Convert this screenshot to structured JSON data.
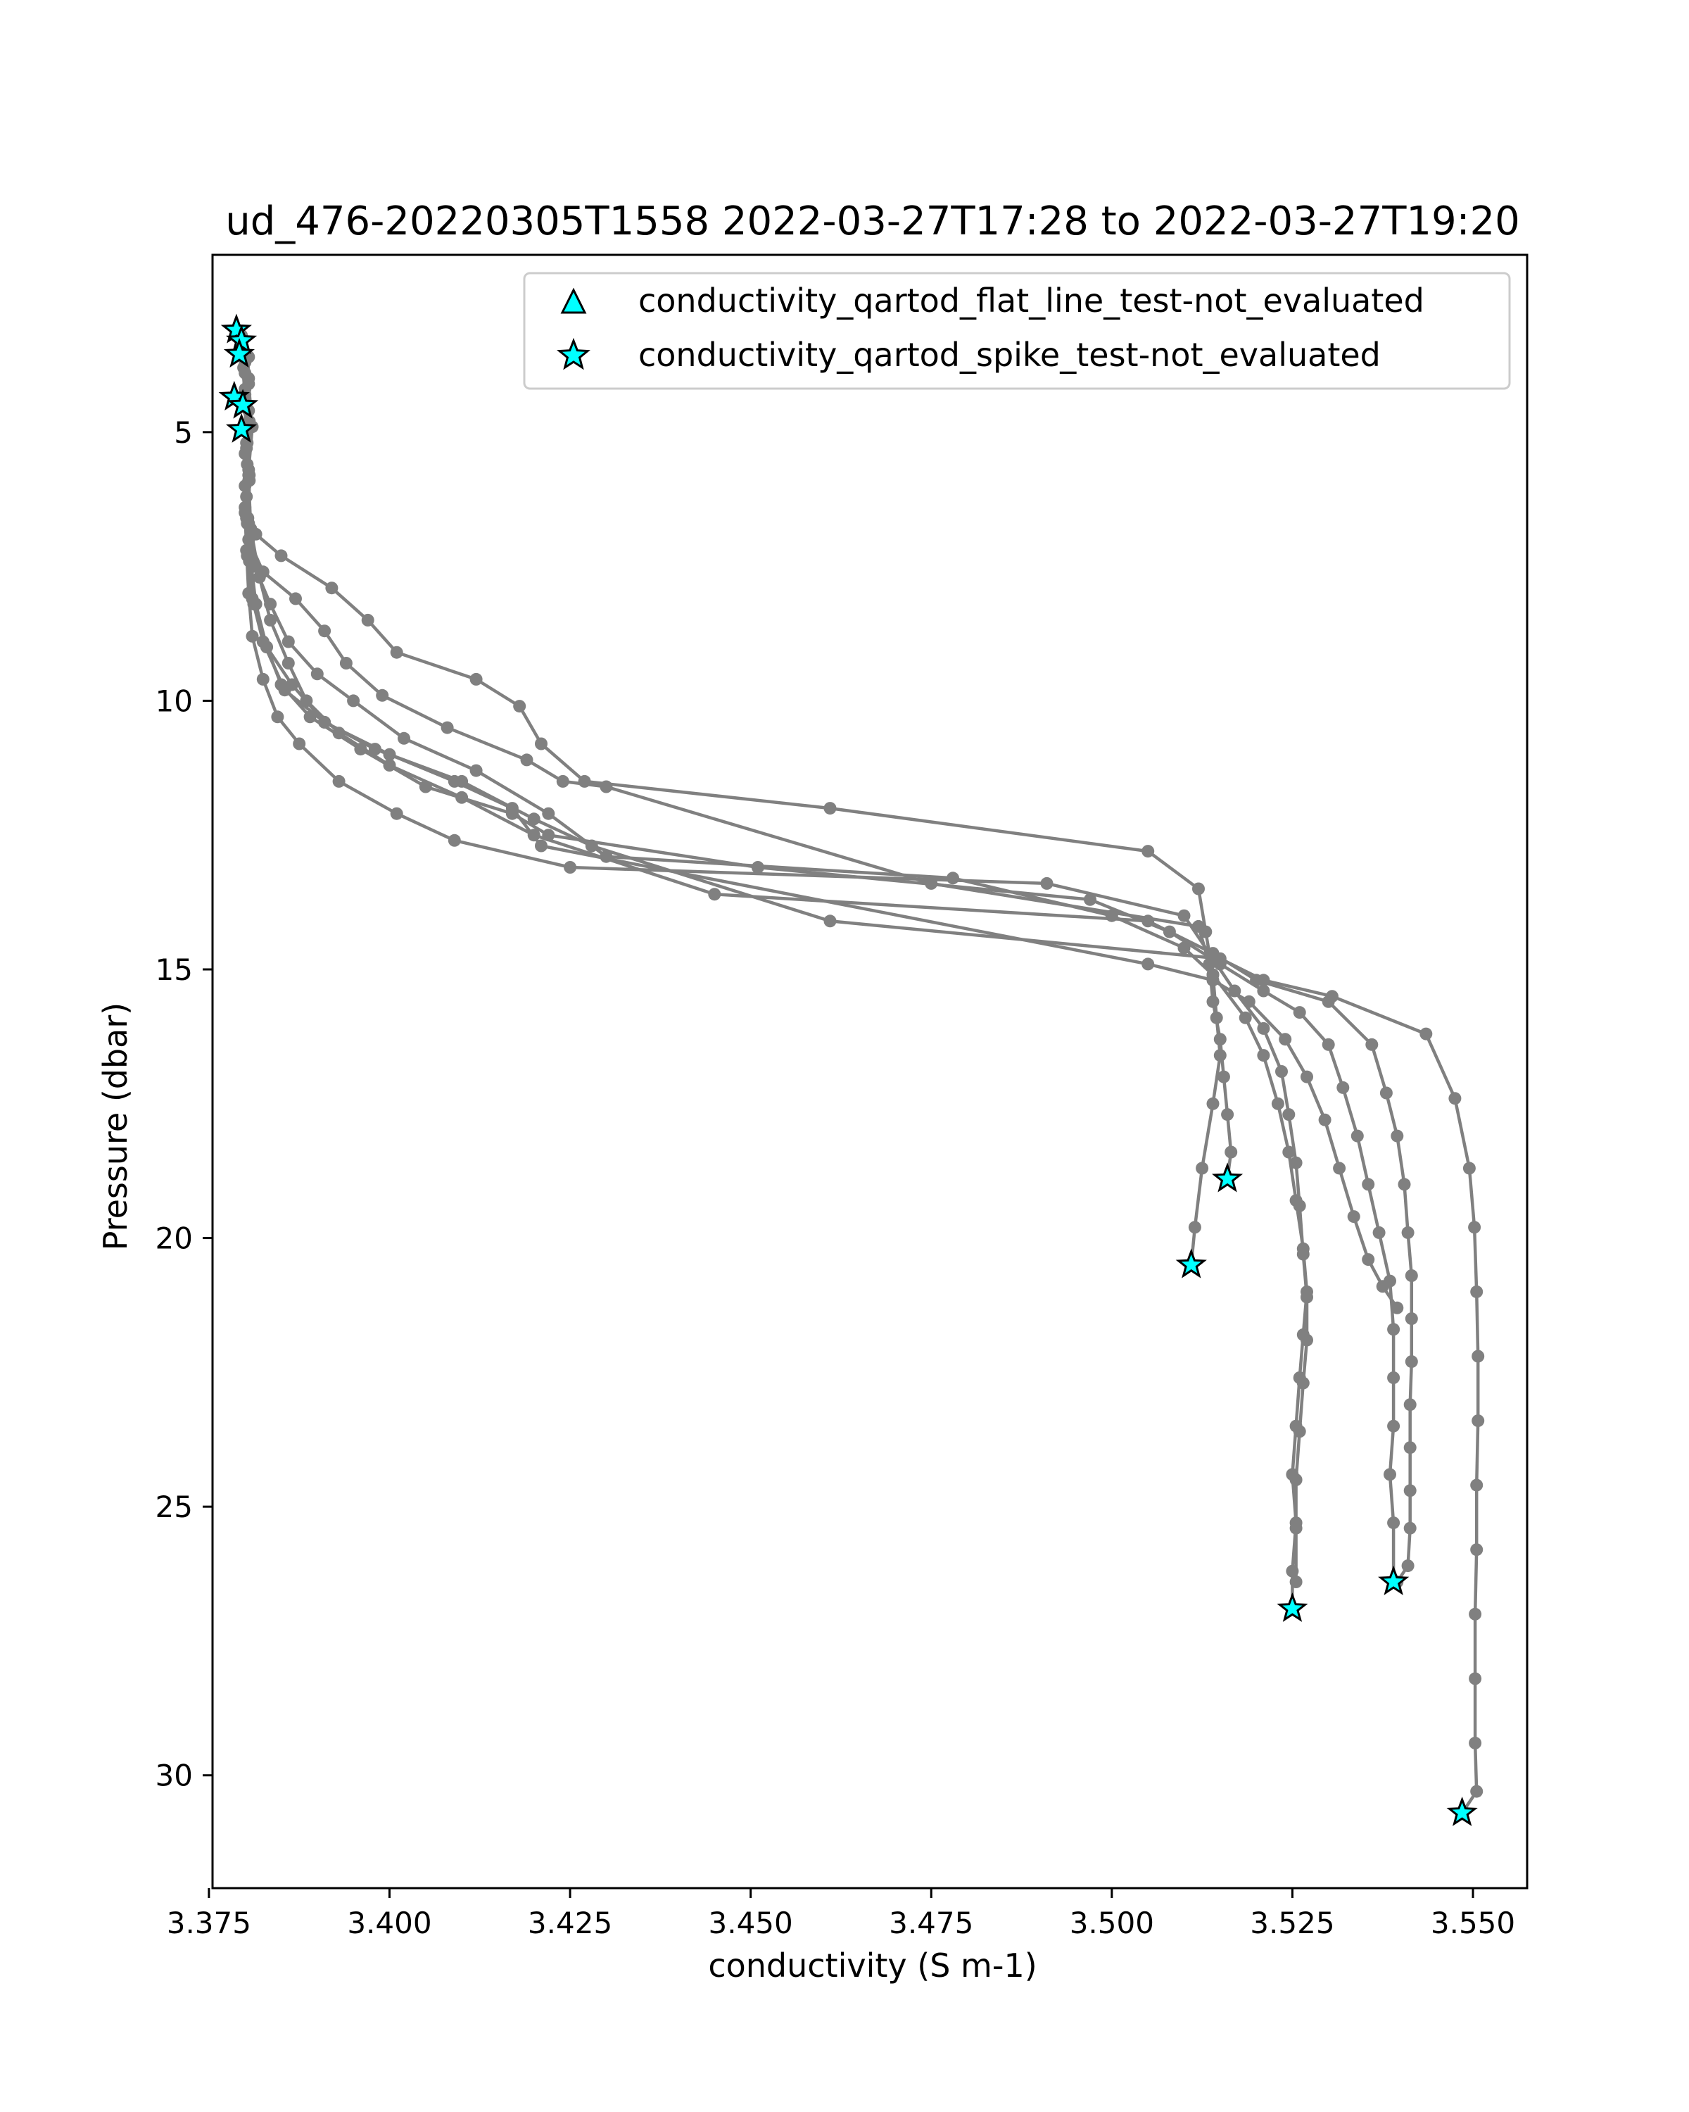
{
  "chart_data": {
    "type": "line",
    "title": "ud_476-20220305T1558 2022-03-27T17:28 to 2022-03-27T19:20",
    "xlabel": "conductivity (S m-1)",
    "ylabel": "Pressure (dbar)",
    "xlim": [
      3.3755,
      3.5575
    ],
    "ylim": [
      32.1,
      1.7
    ],
    "y_inverted": true,
    "xticks": [
      "3.375",
      "3.400",
      "3.425",
      "3.450",
      "3.475",
      "3.500",
      "3.525",
      "3.550"
    ],
    "xtick_values": [
      3.375,
      3.4,
      3.425,
      3.45,
      3.475,
      3.5,
      3.525,
      3.55
    ],
    "yticks": [
      "5",
      "10",
      "15",
      "20",
      "25",
      "30"
    ],
    "ytick_values": [
      5,
      10,
      15,
      20,
      25,
      30
    ],
    "line_color": "#808080",
    "marker_color": "#00ffff",
    "legend_position": "upper right",
    "legend": [
      {
        "label": "conductivity_qartod_flat_line_test-not_evaluated",
        "marker": "triangle"
      },
      {
        "label": "conductivity_qartod_spike_test-not_evaluated",
        "marker": "star"
      }
    ],
    "series": [
      {
        "points": [
          [
            3.3795,
            3.3
          ],
          [
            3.3798,
            3.8
          ],
          [
            3.38,
            4.5
          ],
          [
            3.3802,
            5.3
          ],
          [
            3.38,
            6.0
          ],
          [
            3.3803,
            6.7
          ],
          [
            3.3815,
            6.9
          ],
          [
            3.385,
            7.3
          ],
          [
            3.392,
            7.9
          ],
          [
            3.397,
            8.5
          ],
          [
            3.401,
            9.1
          ],
          [
            3.412,
            9.6
          ],
          [
            3.418,
            10.1
          ],
          [
            3.421,
            10.8
          ],
          [
            3.427,
            11.5
          ],
          [
            3.461,
            12.0
          ],
          [
            3.505,
            12.8
          ],
          [
            3.512,
            13.5
          ],
          [
            3.513,
            14.3
          ],
          [
            3.514,
            15.1
          ],
          [
            3.5145,
            15.9
          ],
          [
            3.515,
            16.6
          ],
          [
            3.514,
            17.5
          ],
          [
            3.5125,
            18.7
          ],
          [
            3.5115,
            19.8
          ],
          [
            3.511,
            20.5
          ]
        ],
        "end_marker": "star"
      },
      {
        "points": [
          [
            3.3795,
            3.3
          ],
          [
            3.38,
            3.9
          ],
          [
            3.3805,
            4.6
          ],
          [
            3.38,
            5.4
          ],
          [
            3.3802,
            6.2
          ],
          [
            3.3805,
            7.0
          ],
          [
            3.3825,
            7.6
          ],
          [
            3.387,
            8.1
          ],
          [
            3.391,
            8.7
          ],
          [
            3.394,
            9.3
          ],
          [
            3.399,
            9.9
          ],
          [
            3.408,
            10.5
          ],
          [
            3.419,
            11.1
          ],
          [
            3.424,
            11.5
          ],
          [
            3.43,
            11.6
          ],
          [
            3.475,
            13.4
          ],
          [
            3.512,
            14.2
          ],
          [
            3.5135,
            14.9
          ],
          [
            3.514,
            15.6
          ],
          [
            3.515,
            16.3
          ],
          [
            3.5155,
            17.0
          ],
          [
            3.516,
            17.7
          ],
          [
            3.5165,
            18.4
          ],
          [
            3.516,
            18.9
          ]
        ],
        "end_marker": "star"
      },
      {
        "points": [
          [
            3.3795,
            3.2
          ],
          [
            3.38,
            3.7
          ],
          [
            3.38,
            4.4
          ],
          [
            3.3803,
            5.2
          ],
          [
            3.3806,
            5.9
          ],
          [
            3.3805,
            6.7
          ],
          [
            3.3813,
            7.5
          ],
          [
            3.3835,
            8.2
          ],
          [
            3.386,
            8.9
          ],
          [
            3.39,
            9.5
          ],
          [
            3.395,
            10.0
          ],
          [
            3.402,
            10.7
          ],
          [
            3.412,
            11.3
          ],
          [
            3.422,
            12.1
          ],
          [
            3.43,
            12.9
          ],
          [
            3.478,
            13.3
          ],
          [
            3.5,
            14.0
          ],
          [
            3.51,
            14.6
          ],
          [
            3.514,
            15.1
          ],
          [
            3.5185,
            15.9
          ],
          [
            3.521,
            16.6
          ],
          [
            3.523,
            17.5
          ],
          [
            3.5245,
            18.4
          ],
          [
            3.5255,
            19.3
          ],
          [
            3.5265,
            20.2
          ],
          [
            3.527,
            21.0
          ],
          [
            3.5265,
            21.8
          ],
          [
            3.526,
            22.6
          ],
          [
            3.5255,
            23.5
          ],
          [
            3.525,
            24.4
          ],
          [
            3.5255,
            25.3
          ],
          [
            3.525,
            26.2
          ],
          [
            3.525,
            26.9
          ]
        ],
        "end_marker": "star"
      },
      {
        "points": [
          [
            3.3795,
            3.4
          ],
          [
            3.3805,
            4.0
          ],
          [
            3.3806,
            4.8
          ],
          [
            3.3803,
            5.6
          ],
          [
            3.38,
            6.4
          ],
          [
            3.3802,
            7.2
          ],
          [
            3.3805,
            8.0
          ],
          [
            3.381,
            8.8
          ],
          [
            3.3825,
            9.6
          ],
          [
            3.3845,
            10.3
          ],
          [
            3.3875,
            10.8
          ],
          [
            3.393,
            11.5
          ],
          [
            3.401,
            12.1
          ],
          [
            3.409,
            12.6
          ],
          [
            3.425,
            13.1
          ],
          [
            3.491,
            13.4
          ],
          [
            3.51,
            14.0
          ],
          [
            3.514,
            14.8
          ],
          [
            3.517,
            15.4
          ],
          [
            3.521,
            16.1
          ],
          [
            3.5235,
            16.9
          ],
          [
            3.5245,
            17.7
          ],
          [
            3.5255,
            18.6
          ],
          [
            3.526,
            19.4
          ],
          [
            3.5265,
            20.3
          ],
          [
            3.527,
            21.1
          ],
          [
            3.527,
            21.9
          ],
          [
            3.5265,
            22.7
          ],
          [
            3.526,
            23.6
          ],
          [
            3.5255,
            24.5
          ],
          [
            3.5255,
            25.4
          ],
          [
            3.5255,
            26.4
          ]
        ],
        "end_marker": null
      },
      {
        "points": [
          [
            3.3795,
            3.5
          ],
          [
            3.38,
            4.3
          ],
          [
            3.3802,
            5.0
          ],
          [
            3.3805,
            5.8
          ],
          [
            3.3802,
            6.6
          ],
          [
            3.3808,
            7.4
          ],
          [
            3.3815,
            8.2
          ],
          [
            3.383,
            9.0
          ],
          [
            3.385,
            9.7
          ],
          [
            3.389,
            10.3
          ],
          [
            3.396,
            10.9
          ],
          [
            3.405,
            11.6
          ],
          [
            3.417,
            12.1
          ],
          [
            3.422,
            12.5
          ],
          [
            3.451,
            13.1
          ],
          [
            3.497,
            13.7
          ],
          [
            3.508,
            14.3
          ],
          [
            3.515,
            14.9
          ],
          [
            3.521,
            15.4
          ],
          [
            3.526,
            15.8
          ],
          [
            3.53,
            16.4
          ],
          [
            3.532,
            17.2
          ],
          [
            3.534,
            18.1
          ],
          [
            3.5355,
            19.0
          ],
          [
            3.537,
            19.9
          ],
          [
            3.5385,
            20.8
          ],
          [
            3.539,
            21.7
          ],
          [
            3.539,
            22.6
          ],
          [
            3.539,
            23.5
          ],
          [
            3.5385,
            24.4
          ],
          [
            3.539,
            25.3
          ],
          [
            3.539,
            26.4
          ]
        ],
        "end_marker": "star"
      },
      {
        "points": [
          [
            3.3795,
            3.2
          ],
          [
            3.3805,
            3.6
          ],
          [
            3.38,
            4.4
          ],
          [
            3.3802,
            5.2
          ],
          [
            3.3805,
            5.9
          ],
          [
            3.3808,
            6.8
          ],
          [
            3.382,
            7.7
          ],
          [
            3.3835,
            8.5
          ],
          [
            3.386,
            9.3
          ],
          [
            3.3885,
            10.0
          ],
          [
            3.393,
            10.6
          ],
          [
            3.4,
            11.2
          ],
          [
            3.41,
            11.8
          ],
          [
            3.42,
            12.5
          ],
          [
            3.445,
            13.6
          ],
          [
            3.505,
            14.1
          ],
          [
            3.514,
            14.7
          ],
          [
            3.52,
            15.2
          ],
          [
            3.53,
            15.6
          ],
          [
            3.536,
            16.4
          ],
          [
            3.538,
            17.3
          ],
          [
            3.5395,
            18.1
          ],
          [
            3.5405,
            19.0
          ],
          [
            3.541,
            19.9
          ],
          [
            3.5415,
            20.7
          ],
          [
            3.5415,
            21.5
          ],
          [
            3.5415,
            22.3
          ],
          [
            3.5413,
            23.1
          ],
          [
            3.5413,
            23.9
          ],
          [
            3.5413,
            24.7
          ],
          [
            3.5413,
            25.4
          ],
          [
            3.541,
            26.1
          ],
          [
            3.5395,
            26.4
          ]
        ],
        "end_marker": null
      },
      {
        "points": [
          [
            3.3795,
            3.3
          ],
          [
            3.3805,
            4.1
          ],
          [
            3.381,
            4.9
          ],
          [
            3.3805,
            5.7
          ],
          [
            3.38,
            6.5
          ],
          [
            3.3803,
            7.3
          ],
          [
            3.381,
            8.1
          ],
          [
            3.3825,
            8.9
          ],
          [
            3.3855,
            9.8
          ],
          [
            3.391,
            10.4
          ],
          [
            3.398,
            10.9
          ],
          [
            3.41,
            11.5
          ],
          [
            3.42,
            12.2
          ],
          [
            3.428,
            12.7
          ],
          [
            3.461,
            14.1
          ],
          [
            3.515,
            14.8
          ],
          [
            3.521,
            15.2
          ],
          [
            3.5305,
            15.5
          ],
          [
            3.5435,
            16.2
          ],
          [
            3.5475,
            17.4
          ],
          [
            3.5495,
            18.7
          ],
          [
            3.5502,
            19.8
          ],
          [
            3.5505,
            21.0
          ],
          [
            3.5507,
            22.2
          ],
          [
            3.5507,
            23.4
          ],
          [
            3.5505,
            24.6
          ],
          [
            3.5505,
            25.8
          ],
          [
            3.5503,
            27.0
          ],
          [
            3.5503,
            28.2
          ],
          [
            3.5503,
            29.4
          ],
          [
            3.5505,
            30.3
          ],
          [
            3.5485,
            30.7
          ]
        ],
        "end_marker": "star"
      },
      {
        "points": [
          [
            3.3795,
            3.4
          ],
          [
            3.38,
            4.2
          ],
          [
            3.3803,
            5.0
          ],
          [
            3.3806,
            5.8
          ],
          [
            3.3804,
            6.6
          ],
          [
            3.3806,
            7.4
          ],
          [
            3.3812,
            8.2
          ],
          [
            3.383,
            9.0
          ],
          [
            3.3865,
            9.7
          ],
          [
            3.391,
            10.4
          ],
          [
            3.4,
            11.0
          ],
          [
            3.409,
            11.5
          ],
          [
            3.417,
            12.0
          ],
          [
            3.421,
            12.7
          ],
          [
            3.505,
            14.9
          ],
          [
            3.514,
            15.2
          ],
          [
            3.519,
            15.6
          ],
          [
            3.524,
            16.3
          ],
          [
            3.527,
            17.0
          ],
          [
            3.5295,
            17.8
          ],
          [
            3.5315,
            18.7
          ],
          [
            3.5335,
            19.6
          ],
          [
            3.5355,
            20.4
          ],
          [
            3.5375,
            20.9
          ],
          [
            3.5395,
            21.3
          ]
        ],
        "end_marker": null
      }
    ],
    "top_stars": [
      [
        3.3788,
        3.1
      ],
      [
        3.3795,
        3.3
      ],
      [
        3.3792,
        3.55
      ],
      [
        3.3785,
        4.35
      ],
      [
        3.3797,
        4.5
      ],
      [
        3.3795,
        4.95
      ]
    ]
  }
}
